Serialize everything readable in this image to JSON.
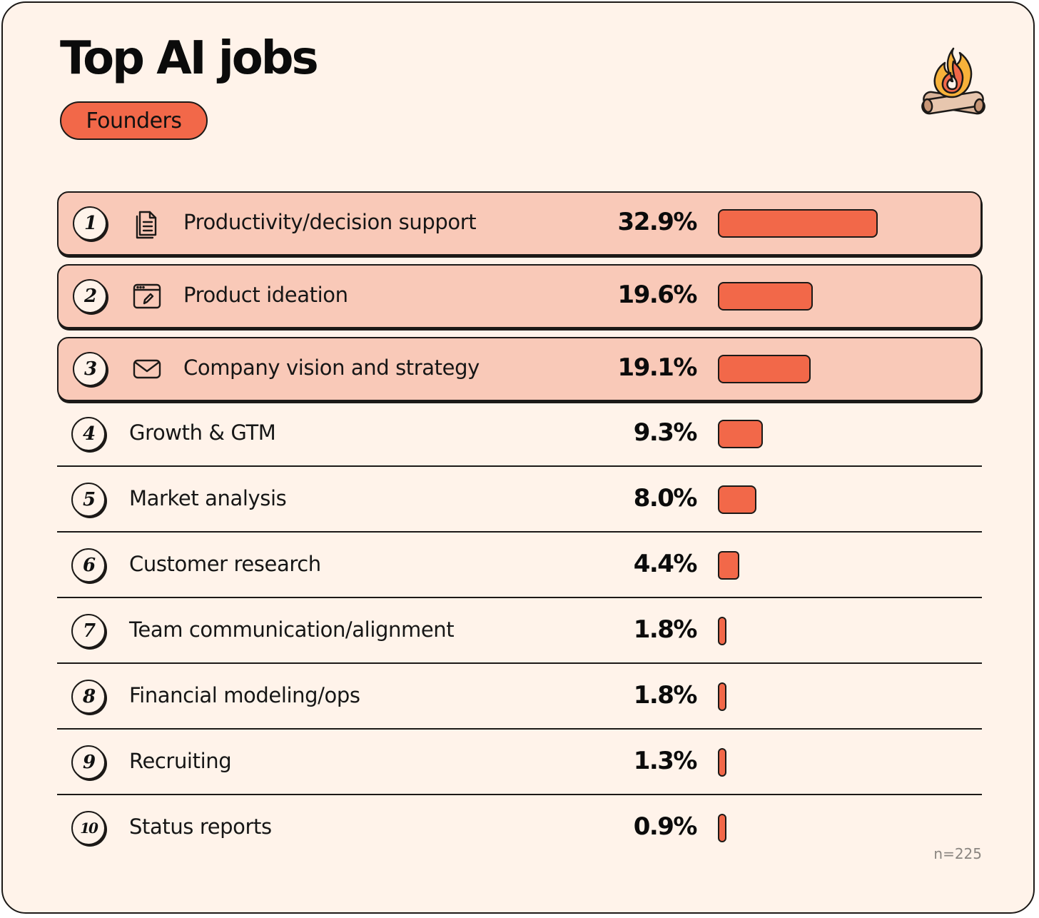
{
  "title": "Top AI jobs",
  "segment": "Founders",
  "note": "n=225",
  "accent_color": "#f26849",
  "highlight_color": "#f9c9b8",
  "background_color": "#fff3ea",
  "chart_data": {
    "type": "bar",
    "orientation": "horizontal",
    "title": "Top AI jobs",
    "subtitle": "Founders",
    "categories": [
      "Productivity/decision support",
      "Product ideation",
      "Company vision and strategy",
      "Growth & GTM",
      "Market analysis",
      "Customer research",
      "Team communication/alignment",
      "Financial modeling/ops",
      "Recruiting",
      "Status reports"
    ],
    "values": [
      32.9,
      19.6,
      19.1,
      9.3,
      8.0,
      4.4,
      1.8,
      1.8,
      1.3,
      0.9
    ],
    "value_labels": [
      "32.9%",
      "19.6%",
      "19.1%",
      "9.3%",
      "8.0%",
      "4.4%",
      "1.8%",
      "1.8%",
      "1.3%",
      "0.9%"
    ],
    "ranks": [
      "1",
      "2",
      "3",
      "4",
      "5",
      "6",
      "7",
      "8",
      "9",
      "10"
    ],
    "icons": [
      "document-icon",
      "browser-edit-icon",
      "envelope-icon"
    ],
    "highlighted_count": 3,
    "unit": "%",
    "sample_size": "n=225",
    "grid": false,
    "legend": "none"
  }
}
